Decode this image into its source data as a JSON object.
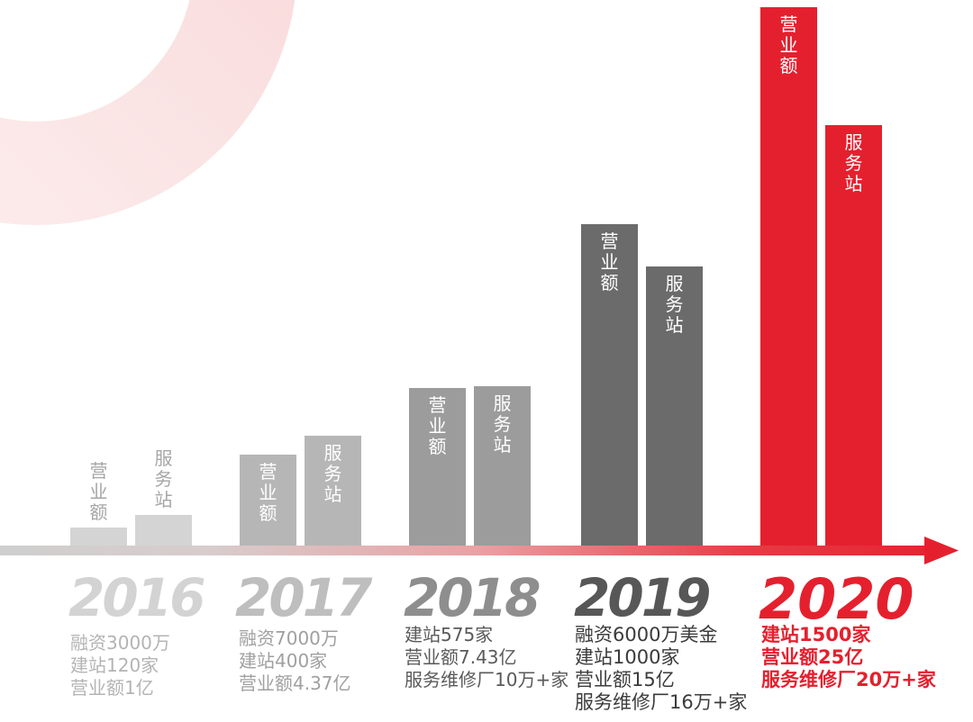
{
  "colors": {
    "accent": "#e5202e",
    "bar_fill": [
      "#d4d4d4",
      "#b6b6b6",
      "#9c9c9c",
      "#6b6b6b",
      "#e5202e"
    ],
    "year_text": [
      "#d3d3d3",
      "#bebebe",
      "#8e8e8e",
      "#575757",
      "#e5202e"
    ],
    "detail_text": [
      "#b4b4b4",
      "#a0a0a0",
      "#5a5a5a",
      "#3b3b3b",
      "#e5202e"
    ],
    "bar_label_inside": "#ffffff",
    "bar_label_outside": "#a6a6a6"
  },
  "chart_data": {
    "type": "bar",
    "categories": [
      "2016",
      "2017",
      "2018",
      "2019",
      "2020"
    ],
    "series": [
      {
        "name": "营业额",
        "values": [
          1,
          4.37,
          7.43,
          15,
          25
        ]
      },
      {
        "name": "服务站",
        "values": [
          120,
          400,
          575,
          1000,
          1500
        ]
      }
    ],
    "annotations": [
      [
        "融资3000万",
        "建站120家",
        "营业额1亿"
      ],
      [
        "融资7000万",
        "建站400家",
        "营业额4.37亿"
      ],
      [
        "建站575家",
        "营业额7.43亿",
        "服务维修厂10万+家"
      ],
      [
        "融资6000万美金",
        "建站1000家",
        "营业额15亿",
        "服务维修厂16万+家"
      ],
      [
        "建站1500家",
        "营业额25亿",
        "服务维修厂20万+家"
      ]
    ],
    "grid": false,
    "legend": false
  }
}
